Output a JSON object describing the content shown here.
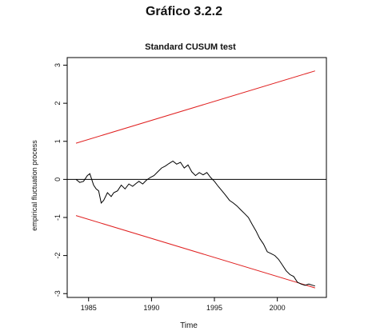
{
  "heading": "Gráfico 3.2.2",
  "chart_data": {
    "type": "line",
    "title": "Standard CUSUM test",
    "xlabel": "Time",
    "ylabel": "empirical fluctuation process",
    "xlim": [
      1983.3,
      2003.9
    ],
    "ylim": [
      -3.1,
      3.2
    ],
    "xticks": [
      1985,
      1990,
      1995,
      2000
    ],
    "yticks": [
      -3,
      -2,
      -1,
      0,
      1,
      2,
      3
    ],
    "grid": false,
    "reference_line": 0,
    "colors": {
      "process": "#000000",
      "boundary": "#e02020",
      "reference": "#000000"
    },
    "boundaries": [
      {
        "x": [
          1984.0,
          2003.0
        ],
        "y": [
          0.95,
          2.85
        ]
      },
      {
        "x": [
          1984.0,
          2003.0
        ],
        "y": [
          -0.95,
          -2.85
        ]
      }
    ],
    "series": [
      {
        "x": [
          1984.0,
          1984.3,
          1984.6,
          1984.9,
          1985.1,
          1985.4,
          1985.6,
          1985.8,
          1986.0,
          1986.2,
          1986.5,
          1986.8,
          1987.0,
          1987.3,
          1987.6,
          1987.9,
          1988.2,
          1988.5,
          1988.8,
          1989.0,
          1989.3,
          1989.6,
          1989.9,
          1990.2,
          1990.5,
          1990.8,
          1991.1,
          1991.4,
          1991.7,
          1992.0,
          1992.3,
          1992.6,
          1992.9,
          1993.2,
          1993.5,
          1993.8,
          1994.1,
          1994.4,
          1994.7,
          1995.0,
          1995.3,
          1995.6,
          1995.9,
          1996.2,
          1996.5,
          1996.8,
          1997.1,
          1997.4,
          1997.7,
          1998.0,
          1998.3,
          1998.6,
          1998.9,
          1999.2,
          1999.5,
          1999.8,
          2000.1,
          2000.4,
          2000.7,
          2001.0,
          2001.3,
          2001.6,
          2001.9,
          2002.2,
          2002.5,
          2002.8,
          2003.0
        ],
        "y": [
          0.0,
          -0.08,
          -0.05,
          0.1,
          0.15,
          -0.15,
          -0.25,
          -0.3,
          -0.62,
          -0.55,
          -0.35,
          -0.45,
          -0.35,
          -0.3,
          -0.15,
          -0.25,
          -0.12,
          -0.18,
          -0.1,
          -0.05,
          -0.12,
          -0.02,
          0.05,
          0.1,
          0.2,
          0.3,
          0.35,
          0.42,
          0.48,
          0.4,
          0.45,
          0.3,
          0.38,
          0.2,
          0.1,
          0.18,
          0.12,
          0.18,
          0.05,
          -0.05,
          -0.18,
          -0.3,
          -0.42,
          -0.55,
          -0.62,
          -0.7,
          -0.8,
          -0.9,
          -1.0,
          -1.18,
          -1.35,
          -1.55,
          -1.7,
          -1.9,
          -1.95,
          -2.0,
          -2.1,
          -2.25,
          -2.4,
          -2.5,
          -2.55,
          -2.7,
          -2.75,
          -2.78,
          -2.75,
          -2.78,
          -2.8
        ]
      }
    ]
  }
}
